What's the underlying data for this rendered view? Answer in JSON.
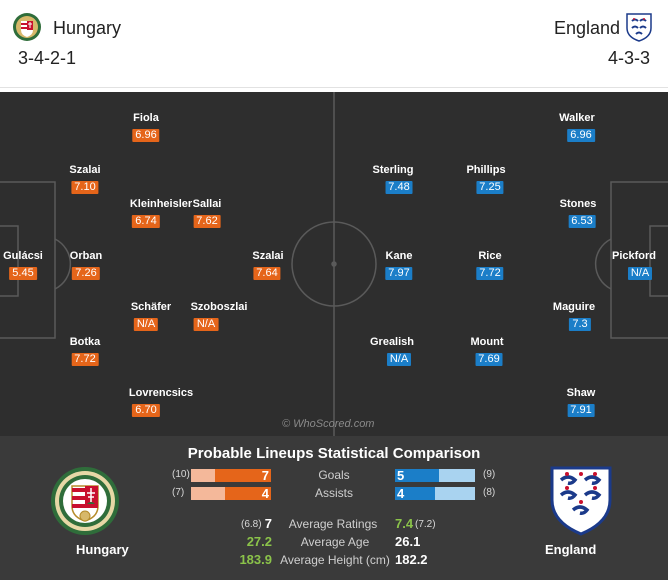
{
  "header": {
    "home": {
      "name": "Hungary",
      "formation": "3-4-2-1"
    },
    "away": {
      "name": "England",
      "formation": "4-3-3"
    }
  },
  "pitch": {
    "watermark": "© WhoScored.com",
    "home_players": [
      {
        "name": "Gulácsi",
        "rating": "5.45"
      },
      {
        "name": "Szalai",
        "rating": "7.10"
      },
      {
        "name": "Orban",
        "rating": "7.26"
      },
      {
        "name": "Botka",
        "rating": "7.72"
      },
      {
        "name": "Fiola",
        "rating": "6.96"
      },
      {
        "name": "Kleinheisler",
        "rating": "6.74"
      },
      {
        "name": "Schäfer",
        "rating": "N/A"
      },
      {
        "name": "Lovrencsics",
        "rating": "6.70"
      },
      {
        "name": "Sallai",
        "rating": "7.62"
      },
      {
        "name": "Szoboszlai",
        "rating": "N/A"
      },
      {
        "name": "Szalai",
        "rating": "7.64"
      }
    ],
    "away_players": [
      {
        "name": "Pickford",
        "rating": "N/A"
      },
      {
        "name": "Walker",
        "rating": "6.96"
      },
      {
        "name": "Stones",
        "rating": "6.53"
      },
      {
        "name": "Maguire",
        "rating": "7.3"
      },
      {
        "name": "Shaw",
        "rating": "7.91"
      },
      {
        "name": "Phillips",
        "rating": "7.25"
      },
      {
        "name": "Rice",
        "rating": "7.72"
      },
      {
        "name": "Mount",
        "rating": "7.69"
      },
      {
        "name": "Sterling",
        "rating": "7.48"
      },
      {
        "name": "Kane",
        "rating": "7.97"
      },
      {
        "name": "Grealish",
        "rating": "N/A"
      }
    ]
  },
  "comparison": {
    "title": "Probable Lineups Statistical Comparison",
    "home_label": "Hungary",
    "away_label": "England",
    "bar_stats": [
      {
        "label": "Goals",
        "home_value": "7",
        "home_total": "(10)",
        "away_value": "5",
        "away_total": "(9)",
        "home_fraction": 0.7,
        "away_fraction": 0.556
      },
      {
        "label": "Assists",
        "home_value": "4",
        "home_total": "(7)",
        "away_value": "4",
        "away_total": "(8)",
        "home_fraction": 0.571,
        "away_fraction": 0.5
      }
    ],
    "text_stats": [
      {
        "label": "Average Ratings",
        "home_value": "7",
        "home_extra": "(6.8)",
        "away_value": "7.4",
        "away_extra": "(7.2)",
        "highlight": "away"
      },
      {
        "label": "Average Age",
        "home_value": "27.2",
        "home_extra": "",
        "away_value": "26.1",
        "away_extra": "",
        "highlight": "home"
      },
      {
        "label": "Average Height (cm)",
        "home_value": "183.9",
        "home_extra": "",
        "away_value": "182.2",
        "away_extra": "",
        "highlight": "home"
      }
    ]
  },
  "colors": {
    "home_rating": "#e5651a",
    "away_rating": "#1b7ec8",
    "highlight_green": "#8bc34a",
    "home_bar_light": "#f4b89a",
    "away_bar_light": "#a9d3f0"
  },
  "icons": {
    "home_crest": "hungary-crest-icon",
    "away_crest": "england-crest-icon"
  }
}
